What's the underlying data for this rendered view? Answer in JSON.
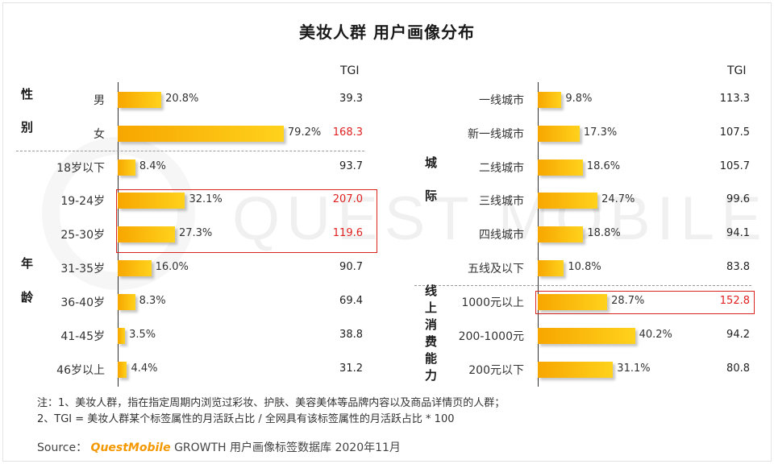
{
  "title": "美妆人群 用户画像分布",
  "watermark": "QUEST MOBILE",
  "tgi_header": "TGI",
  "colors": {
    "bar_start": "#f7a600",
    "bar_end": "#ffd21c",
    "highlight": "#e02020"
  },
  "chart_data": [
    {
      "type": "bar",
      "orientation": "horizontal",
      "title": "",
      "groups": [
        {
          "label": [
            "性",
            "别"
          ],
          "categories": [
            "男",
            "女"
          ],
          "values": [
            20.8,
            79.2
          ],
          "value_labels": [
            "20.8%",
            "79.2%"
          ],
          "tgi": [
            "39.3",
            "168.3"
          ],
          "tgi_highlight": [
            false,
            true
          ]
        },
        {
          "label": [
            "年",
            "龄"
          ],
          "categories": [
            "18岁以下",
            "19-24岁",
            "25-30岁",
            "31-35岁",
            "36-40岁",
            "41-45岁",
            "46岁以上"
          ],
          "values": [
            8.4,
            32.1,
            27.3,
            16.0,
            8.3,
            3.5,
            4.4
          ],
          "value_labels": [
            "8.4%",
            "32.1%",
            "27.3%",
            "16.0%",
            "8.3%",
            "3.5%",
            "4.4%"
          ],
          "tgi": [
            "93.7",
            "207.0",
            "119.6",
            "90.7",
            "69.4",
            "38.8",
            "31.2"
          ],
          "tgi_highlight": [
            false,
            true,
            true,
            false,
            false,
            false,
            false
          ]
        }
      ]
    },
    {
      "type": "bar",
      "orientation": "horizontal",
      "title": "",
      "groups": [
        {
          "label": [
            "城",
            "际"
          ],
          "categories": [
            "一线城市",
            "新一线城市",
            "二线城市",
            "三线城市",
            "四线城市",
            "五线及以下"
          ],
          "values": [
            9.8,
            17.3,
            18.6,
            24.7,
            18.8,
            10.8
          ],
          "value_labels": [
            "9.8%",
            "17.3%",
            "18.6%",
            "24.7%",
            "18.8%",
            "10.8%"
          ],
          "tgi": [
            "113.3",
            "107.5",
            "105.7",
            "99.6",
            "94.1",
            "83.8"
          ],
          "tgi_highlight": [
            false,
            false,
            false,
            false,
            false,
            false
          ]
        },
        {
          "label": [
            "线",
            "上",
            "消",
            "费",
            "能",
            "力"
          ],
          "categories": [
            "1000元以上",
            "200-1000元",
            "200元以下"
          ],
          "values": [
            28.7,
            40.2,
            31.1
          ],
          "value_labels": [
            "28.7%",
            "40.2%",
            "31.1%"
          ],
          "tgi": [
            "152.8",
            "94.2",
            "80.8"
          ],
          "tgi_highlight": [
            true,
            false,
            false
          ]
        }
      ]
    }
  ],
  "notes": [
    "注：1、美妆人群，指在指定周期内浏览过彩妆、护肤、美容美体等品牌内容以及商品详情页的人群；",
    "2、TGI = 美妆人群某个标签属性的月活跃占比 / 全网具有该标签属性的月活跃占比 * 100"
  ],
  "source": {
    "prefix": "Source：",
    "brand": "QuestMobile",
    "text": "GROWTH 用户画像标签数据库 2020年11月"
  }
}
